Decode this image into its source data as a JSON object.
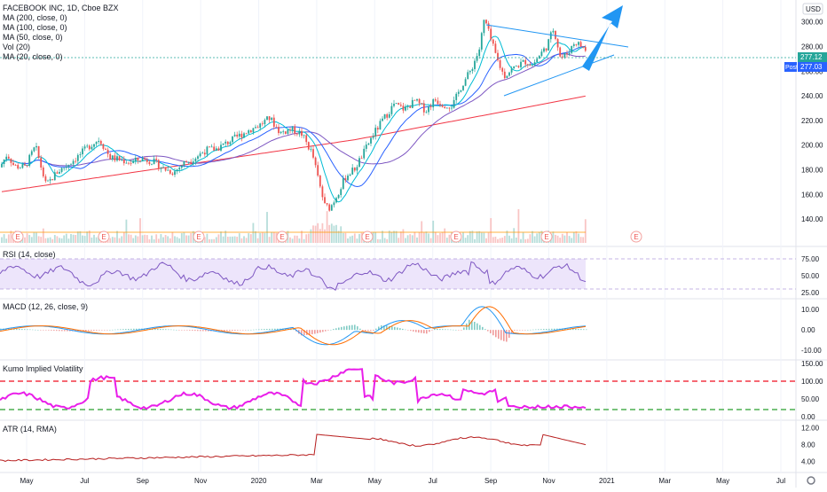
{
  "chart_data": [
    {
      "type": "candlestick",
      "title": "FACEBOOK INC, 1D, Cboe BZX",
      "currency": "USD",
      "legend_lines": [
        "MA (200, close, 0)",
        "MA (100, close, 0)",
        "MA (50, close, 0)",
        "Vol (20)",
        "MA (20, close, 0)"
      ],
      "last_price": "277.12",
      "post_label": "Post",
      "post_price": "277.03",
      "ylim": [
        125,
        312
      ],
      "y_ticks": [
        "300.00",
        "280.00",
        "260.00",
        "240.00",
        "220.00",
        "200.00",
        "180.00",
        "160.00",
        "140.00"
      ],
      "earnings_marker": "E",
      "earnings_dates": [
        "2019-04-25",
        "2019-07-25",
        "2019-10-31",
        "2020-01-30",
        "2020-04-30",
        "2020-07-31",
        "2020-10-30",
        "2021-01-28"
      ],
      "price_path": [
        [
          0,
          182
        ],
        [
          8,
          193
        ],
        [
          16,
          183
        ],
        [
          28,
          182
        ],
        [
          40,
          199
        ],
        [
          52,
          167
        ],
        [
          64,
          178
        ],
        [
          76,
          184
        ],
        [
          88,
          191
        ],
        [
          100,
          199
        ],
        [
          112,
          205
        ],
        [
          124,
          190
        ],
        [
          136,
          188
        ],
        [
          148,
          186
        ],
        [
          160,
          189
        ],
        [
          172,
          187
        ],
        [
          184,
          181
        ],
        [
          196,
          178
        ],
        [
          208,
          186
        ],
        [
          220,
          190
        ],
        [
          232,
          196
        ],
        [
          244,
          197
        ],
        [
          256,
          202
        ],
        [
          268,
          207
        ],
        [
          280,
          212
        ],
        [
          292,
          216
        ],
        [
          304,
          222
        ],
        [
          316,
          210
        ],
        [
          328,
          213
        ],
        [
          340,
          209
        ],
        [
          352,
          193
        ],
        [
          360,
          168
        ],
        [
          366,
          151
        ],
        [
          372,
          149
        ],
        [
          380,
          160
        ],
        [
          390,
          175
        ],
        [
          400,
          181
        ],
        [
          410,
          194
        ],
        [
          420,
          208
        ],
        [
          432,
          221
        ],
        [
          444,
          233
        ],
        [
          456,
          229
        ],
        [
          468,
          236
        ],
        [
          480,
          228
        ],
        [
          490,
          237
        ],
        [
          500,
          233
        ],
        [
          510,
          232
        ],
        [
          520,
          248
        ],
        [
          530,
          260
        ],
        [
          540,
          277
        ],
        [
          546,
          303
        ],
        [
          552,
          288
        ],
        [
          560,
          270
        ],
        [
          568,
          256
        ],
        [
          576,
          261
        ],
        [
          584,
          265
        ],
        [
          592,
          268
        ],
        [
          600,
          265
        ],
        [
          608,
          273
        ],
        [
          616,
          280
        ],
        [
          624,
          295
        ],
        [
          632,
          270
        ],
        [
          640,
          275
        ],
        [
          648,
          284
        ],
        [
          656,
          280
        ],
        [
          660,
          277
        ]
      ]
    },
    {
      "type": "line",
      "title": "RSI (14, close)",
      "ylim": [
        25,
        80
      ],
      "y_ticks": [
        "75.00",
        "50.00",
        "25.00"
      ]
    },
    {
      "type": "histogram",
      "title": "MACD (12, 26, close, 9)",
      "ylim": [
        -13,
        14
      ],
      "y_ticks": [
        "10.00",
        "0.00",
        "-10.00"
      ]
    },
    {
      "type": "line",
      "title": "Kumo Implied Volatility",
      "ylim": [
        0,
        150
      ],
      "y_ticks": [
        "150.00",
        "100.00",
        "50.00",
        "0.00"
      ],
      "upper_level": 100,
      "lower_level": 25
    },
    {
      "type": "line",
      "title": "ATR (14, RMA)",
      "ylim": [
        2,
        13
      ],
      "y_ticks": [
        "12.00",
        "8.00",
        "4.00"
      ]
    }
  ],
  "time_axis": {
    "labels": [
      "May",
      "Jul",
      "Sep",
      "Nov",
      "2020",
      "Mar",
      "May",
      "Jul",
      "Sep",
      "Nov",
      "2021",
      "Mar",
      "May",
      "Jul"
    ]
  },
  "colors": {
    "up": "#26a69a",
    "down": "#ef5350",
    "ma200": "#f23645",
    "ma100": "#7e57c2",
    "ma50": "#2962ff",
    "ma20": "#00bcd4",
    "rsi": "#7e57c2",
    "rsi_band": "#e1d5f7",
    "macd": "#2196f3",
    "signal": "#ff6d00",
    "kumo": "#e91ee9",
    "atr": "#b71c1c",
    "price_line": "#26a69a"
  },
  "settings_icon": "gear-icon"
}
